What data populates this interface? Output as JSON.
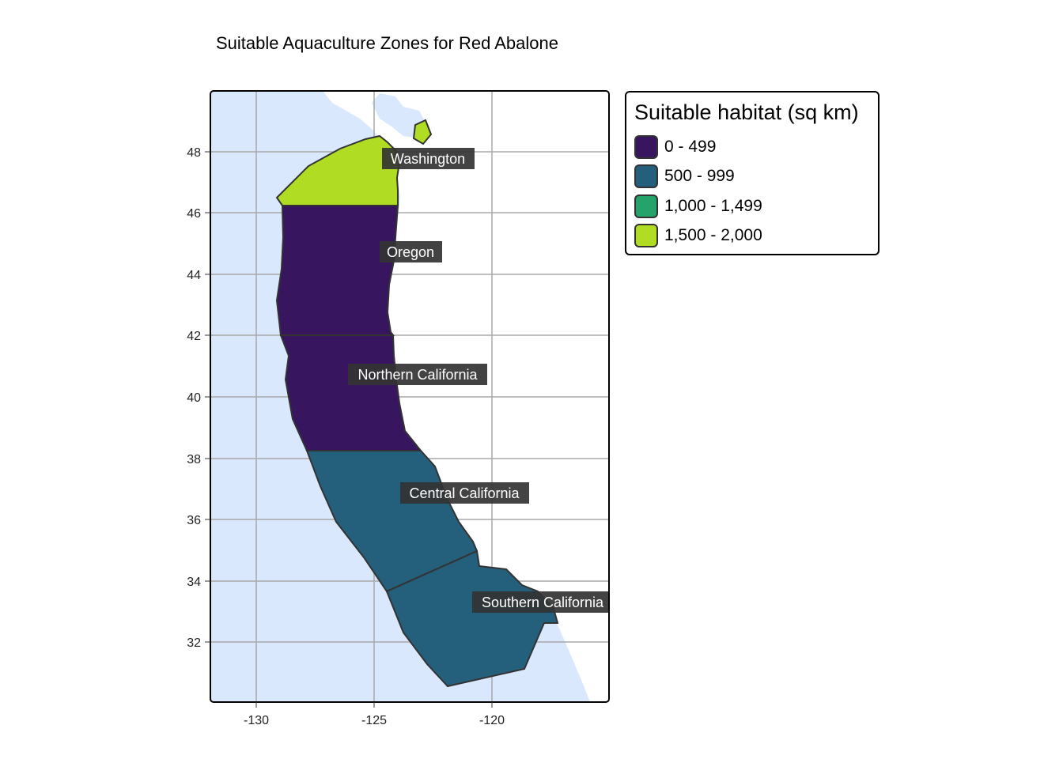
{
  "title": "Suitable Aquaculture Zones for Red Abalone",
  "colors": {
    "ocean": "#d9e8fd",
    "land": "#ffffff",
    "grid": "#a8a8a8",
    "outline": "#333333",
    "label_bg": "#333333",
    "tier_0_499": "#37165f",
    "tier_500_999": "#245f7c",
    "tier_1000_1499": "#26a26b",
    "tier_1500_2000": "#b0dd24"
  },
  "axes": {
    "x_ticks": [
      "-130",
      "-125",
      "-120"
    ],
    "y_ticks": [
      "32",
      "34",
      "36",
      "38",
      "40",
      "42",
      "44",
      "46",
      "48"
    ],
    "x_range": [
      -132,
      -115.2
    ],
    "y_range": [
      30,
      50
    ]
  },
  "regions": [
    {
      "name": "Washington",
      "tier": "1,500 - 2,000"
    },
    {
      "name": "Oregon",
      "tier": "0 - 499"
    },
    {
      "name": "Northern California",
      "tier": "0 - 499"
    },
    {
      "name": "Central California",
      "tier": "500 - 999"
    },
    {
      "name": "Southern California",
      "tier": "500 - 999"
    }
  ],
  "legend": {
    "title": "Suitable habitat (sq km)",
    "items": [
      {
        "label": "0 - 499",
        "color": "#37165f"
      },
      {
        "label": "500 - 999",
        "color": "#245f7c"
      },
      {
        "label": "1,000 - 1,499",
        "color": "#26a26b"
      },
      {
        "label": "1,500 - 2,000",
        "color": "#b0dd24"
      }
    ]
  }
}
